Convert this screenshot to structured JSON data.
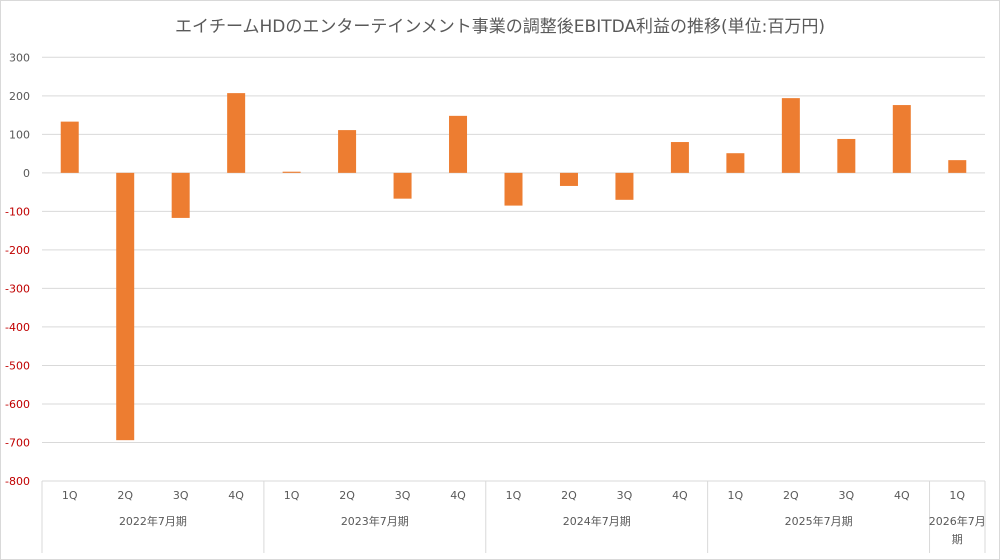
{
  "chart_data": {
    "type": "bar",
    "title": "エイチームHDのエンターテインメント事業の調整後EBITDA利益の推移(単位:百万円)",
    "xlabel": "",
    "ylabel": "",
    "ylim": [
      -800,
      300
    ],
    "yticks": [
      300,
      200,
      100,
      0,
      -100,
      -200,
      -300,
      -400,
      -500,
      -600,
      -700,
      -800
    ],
    "grid": true,
    "legend": "none",
    "bar_color": "#ED7D31",
    "negative_tick_color": "#C00000",
    "groups": [
      {
        "label": "2022年7月期",
        "categories": [
          "1Q",
          "2Q",
          "3Q",
          "4Q"
        ],
        "values": [
          133,
          -694,
          -117,
          207
        ]
      },
      {
        "label": "2023年7月期",
        "categories": [
          "1Q",
          "2Q",
          "3Q",
          "4Q"
        ],
        "values": [
          3,
          111,
          -67,
          148
        ]
      },
      {
        "label": "2024年7月期",
        "categories": [
          "1Q",
          "2Q",
          "3Q",
          "4Q"
        ],
        "values": [
          -85,
          -34,
          -70,
          80
        ]
      },
      {
        "label": "2025年7月期",
        "categories": [
          "1Q",
          "2Q",
          "3Q",
          "4Q"
        ],
        "values": [
          51,
          194,
          88,
          176
        ]
      },
      {
        "label_lines": [
          "2026年7月",
          "期"
        ],
        "categories": [
          "1Q"
        ],
        "values": [
          33
        ]
      }
    ]
  }
}
